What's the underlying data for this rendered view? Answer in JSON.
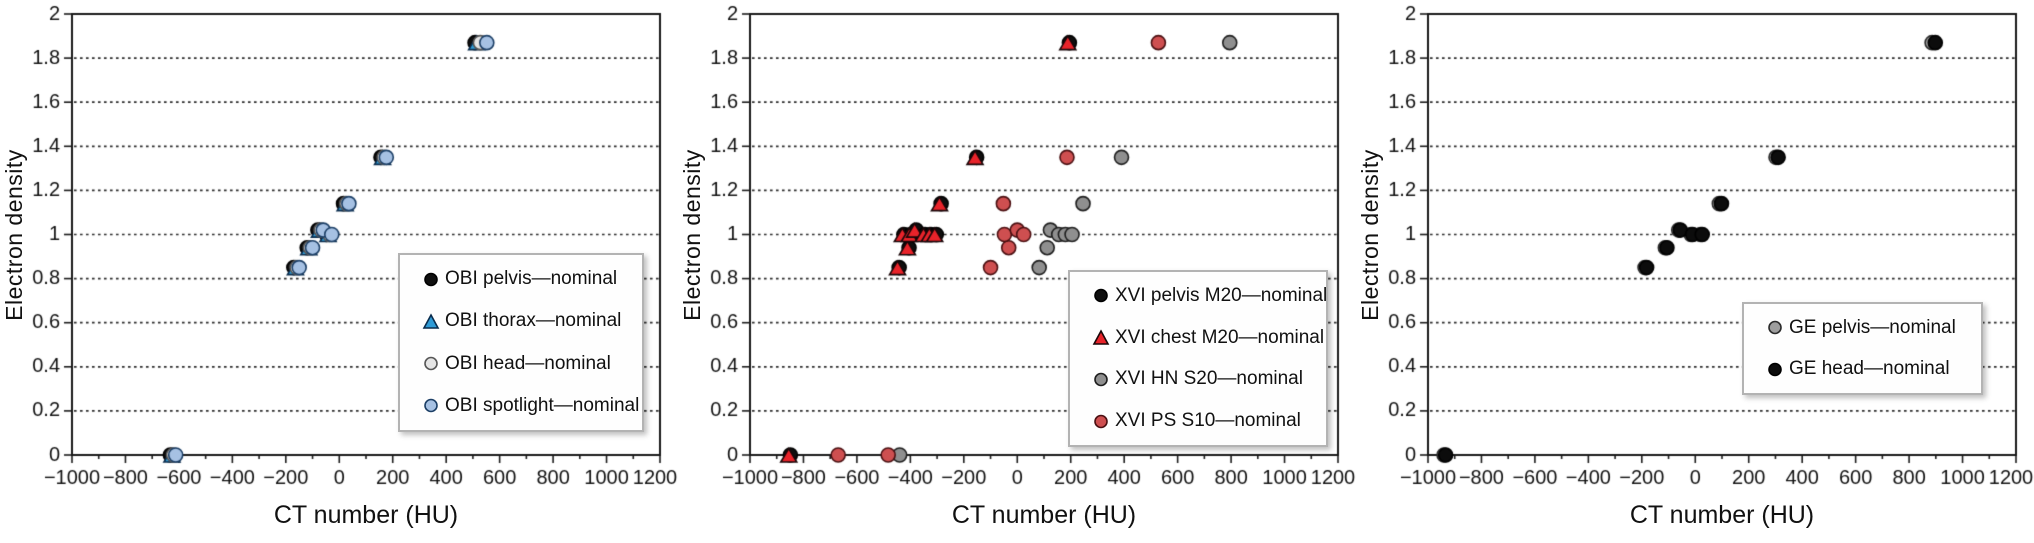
{
  "chart_data": [
    {
      "type": "scatter",
      "panel": "OBI",
      "xlabel": "CT number (HU)",
      "ylabel": "Electron density",
      "xlim": [
        -1000,
        1200
      ],
      "ylim": [
        0,
        2
      ],
      "xticks": [
        -1000,
        -800,
        -600,
        -400,
        -200,
        0,
        200,
        400,
        600,
        800,
        1000,
        1200
      ],
      "xtick_minor_step": 100,
      "yticks": [
        0,
        0.2,
        0.4,
        0.6,
        0.8,
        1,
        1.2,
        1.4,
        1.6,
        1.8,
        2
      ],
      "grid": "horizontal-dashed",
      "legend_position": "lower-right",
      "series": [
        {
          "name": "OBI pelvis—nominal",
          "marker": "circle",
          "fill": "#0f0f0f",
          "stroke": "#000000",
          "points": [
            [
              -632,
              0
            ],
            [
              -170,
              0.85
            ],
            [
              -120,
              0.94
            ],
            [
              -80,
              1.02
            ],
            [
              -48,
              1.0
            ],
            [
              16,
              1.14
            ],
            [
              156,
              1.35
            ],
            [
              508,
              1.87
            ]
          ]
        },
        {
          "name": "OBI thorax—nominal",
          "marker": "triangle",
          "fill": "#2f9bd6",
          "stroke": "#0a2c4d",
          "points": [
            [
              -626,
              0
            ],
            [
              -164,
              0.85
            ],
            [
              -114,
              0.94
            ],
            [
              -74,
              1.02
            ],
            [
              -42,
              1.0
            ],
            [
              22,
              1.14
            ],
            [
              162,
              1.35
            ],
            [
              514,
              1.87
            ]
          ]
        },
        {
          "name": "OBI head—nominal",
          "marker": "circle",
          "fill": "#e5e5e5",
          "stroke": "#565656",
          "points": [
            [
              -620,
              0
            ],
            [
              -158,
              0.85
            ],
            [
              -108,
              0.94
            ],
            [
              -68,
              1.02
            ],
            [
              -36,
              1.0
            ],
            [
              28,
              1.14
            ],
            [
              168,
              1.35
            ],
            [
              528,
              1.87
            ]
          ]
        },
        {
          "name": "OBI spotlight—nominal",
          "marker": "circle",
          "fill": "#a6c1e3",
          "stroke": "#1c3f66",
          "points": [
            [
              -612,
              0
            ],
            [
              -150,
              0.85
            ],
            [
              -100,
              0.94
            ],
            [
              -60,
              1.02
            ],
            [
              -28,
              1.0
            ],
            [
              36,
              1.14
            ],
            [
              176,
              1.35
            ],
            [
              552,
              1.87
            ]
          ]
        }
      ]
    },
    {
      "type": "scatter",
      "panel": "XVI",
      "xlabel": "CT number (HU)",
      "ylabel": "Electron density",
      "xlim": [
        -1000,
        1200
      ],
      "ylim": [
        0,
        2
      ],
      "xticks": [
        -1000,
        -800,
        -600,
        -400,
        -200,
        0,
        200,
        400,
        600,
        800,
        1000,
        1200
      ],
      "xtick_minor_step": 100,
      "yticks": [
        0,
        0.2,
        0.4,
        0.6,
        0.8,
        1,
        1.2,
        1.4,
        1.6,
        1.8,
        2
      ],
      "grid": "horizontal-dashed",
      "legend_position": "lower-right",
      "series": [
        {
          "name": "XVI pelvis M20—nominal",
          "marker": "circle",
          "fill": "#0f0f0f",
          "stroke": "#000000",
          "points": [
            [
              -849,
              0
            ],
            [
              -442,
              0.85
            ],
            [
              -424,
              1.0
            ],
            [
              -405,
              0.94
            ],
            [
              -398,
              1.0
            ],
            [
              -378,
              1.02
            ],
            [
              -345,
              1.0
            ],
            [
              -323,
              1.0
            ],
            [
              -303,
              1.0
            ],
            [
              -285,
              1.14
            ],
            [
              -152,
              1.35
            ],
            [
              195,
              1.87
            ]
          ]
        },
        {
          "name": "XVI chest M20—nominal",
          "marker": "triangle",
          "fill": "#e8232a",
          "stroke": "#1a0608",
          "points": [
            [
              -855,
              0
            ],
            [
              -448,
              0.85
            ],
            [
              -430,
              1.0
            ],
            [
              -411,
              0.94
            ],
            [
              -404,
              1.0
            ],
            [
              -384,
              1.02
            ],
            [
              -351,
              1.0
            ],
            [
              -329,
              1.0
            ],
            [
              -309,
              1.0
            ],
            [
              -291,
              1.14
            ],
            [
              -158,
              1.35
            ],
            [
              189,
              1.87
            ]
          ]
        },
        {
          "name": "XVI HN S20—nominal",
          "marker": "circle",
          "fill": "#8f8f8f",
          "stroke": "#1e1e1e",
          "points": [
            [
              -440,
              0
            ],
            [
              82,
              0.85
            ],
            [
              112,
              0.94
            ],
            [
              124,
              1.02
            ],
            [
              155,
              1.0
            ],
            [
              180,
              1.0
            ],
            [
              205,
              1.0
            ],
            [
              246,
              1.14
            ],
            [
              390,
              1.35
            ],
            [
              795,
              1.87
            ]
          ]
        },
        {
          "name": "XVI PS S10—nominal",
          "marker": "circle",
          "fill": "#ce4f50",
          "stroke": "#4a1012",
          "points": [
            [
              -670,
              0
            ],
            [
              -483,
              0
            ],
            [
              -100,
              0.85
            ],
            [
              -32,
              0.94
            ],
            [
              -48,
              1.0
            ],
            [
              0,
              1.02
            ],
            [
              24,
              1.0
            ],
            [
              -52,
              1.14
            ],
            [
              186,
              1.35
            ],
            [
              528,
              1.87
            ]
          ]
        }
      ]
    },
    {
      "type": "scatter",
      "panel": "GE",
      "xlabel": "CT number (HU)",
      "ylabel": "Electron density",
      "xlim": [
        -1000,
        1200
      ],
      "ylim": [
        0,
        2
      ],
      "xticks": [
        -1000,
        -800,
        -600,
        -400,
        -200,
        0,
        200,
        400,
        600,
        800,
        1000,
        1200
      ],
      "xtick_minor_step": 100,
      "yticks": [
        0,
        0.2,
        0.4,
        0.6,
        0.8,
        1,
        1.2,
        1.4,
        1.6,
        1.8,
        2
      ],
      "grid": "horizontal-dashed",
      "legend_position": "lower-right",
      "series": [
        {
          "name": "GE pelvis—nominal",
          "marker": "circle",
          "fill": "#9e9e9e",
          "stroke": "#2b2b2b",
          "points": [
            [
              -940,
              0
            ],
            [
              -188,
              0.85
            ],
            [
              -112,
              0.94
            ],
            [
              -62,
              1.02
            ],
            [
              -16,
              1.0
            ],
            [
              20,
              1.0
            ],
            [
              90,
              1.14
            ],
            [
              302,
              1.35
            ],
            [
              886,
              1.87
            ]
          ]
        },
        {
          "name": "GE head—nominal",
          "marker": "circle",
          "fill": "#0c0c0c",
          "stroke": "#000000",
          "points": [
            [
              -934,
              0
            ],
            [
              -182,
              0.85
            ],
            [
              -106,
              0.94
            ],
            [
              -56,
              1.02
            ],
            [
              -10,
              1.0
            ],
            [
              26,
              1.0
            ],
            [
              98,
              1.14
            ],
            [
              310,
              1.35
            ],
            [
              898,
              1.87
            ]
          ]
        }
      ]
    }
  ]
}
